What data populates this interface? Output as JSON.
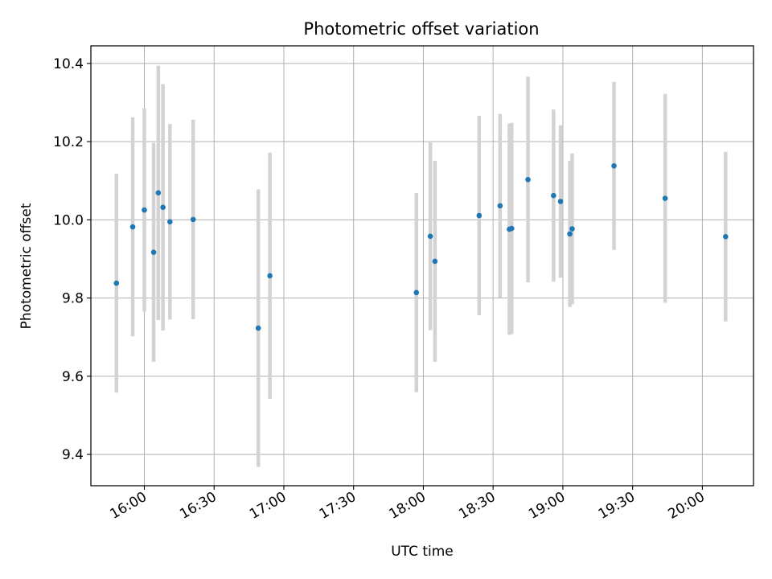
{
  "chart_data": {
    "type": "scatter",
    "title": "Photometric offset variation",
    "xlabel": "UTC time",
    "ylabel": "Photometric offset",
    "grid": true,
    "x_ticks": [
      "16:00",
      "16:30",
      "17:00",
      "17:30",
      "18:00",
      "18:30",
      "19:00",
      "19:30",
      "20:00"
    ],
    "y_ticks": [
      "9.4",
      "9.6",
      "9.8",
      "10.0",
      "10.2",
      "10.4"
    ],
    "xlim": [
      "15:37",
      "20:22"
    ],
    "ylim": [
      9.32,
      10.445
    ],
    "colors": {
      "points": "#1f77b4",
      "errorbars": "#d3d3d3",
      "grid": "#b0b0b0"
    },
    "points": [
      {
        "x": "15:48",
        "y": 9.838,
        "err": 0.28
      },
      {
        "x": "15:55",
        "y": 9.982,
        "err": 0.28
      },
      {
        "x": "16:00",
        "y": 10.025,
        "err": 0.26
      },
      {
        "x": "16:04",
        "y": 9.917,
        "err": 0.28
      },
      {
        "x": "16:06",
        "y": 10.069,
        "err": 0.325
      },
      {
        "x": "16:08",
        "y": 10.032,
        "err": 0.315
      },
      {
        "x": "16:11",
        "y": 9.995,
        "err": 0.25
      },
      {
        "x": "16:21",
        "y": 10.001,
        "err": 0.255
      },
      {
        "x": "16:49",
        "y": 9.723,
        "err": 0.355
      },
      {
        "x": "16:54",
        "y": 9.857,
        "err": 0.315
      },
      {
        "x": "17:57",
        "y": 9.814,
        "err": 0.255
      },
      {
        "x": "18:03",
        "y": 9.958,
        "err": 0.24
      },
      {
        "x": "18:05",
        "y": 9.894,
        "err": 0.257
      },
      {
        "x": "18:24",
        "y": 10.011,
        "err": 0.255
      },
      {
        "x": "18:33",
        "y": 10.036,
        "err": 0.235
      },
      {
        "x": "18:37",
        "y": 9.976,
        "err": 0.27
      },
      {
        "x": "18:38",
        "y": 9.978,
        "err": 0.27
      },
      {
        "x": "18:45",
        "y": 10.103,
        "err": 0.263
      },
      {
        "x": "18:56",
        "y": 10.062,
        "err": 0.22
      },
      {
        "x": "18:59",
        "y": 10.047,
        "err": 0.195
      },
      {
        "x": "19:03",
        "y": 9.964,
        "err": 0.187
      },
      {
        "x": "19:04",
        "y": 9.977,
        "err": 0.193
      },
      {
        "x": "19:22",
        "y": 10.138,
        "err": 0.215
      },
      {
        "x": "19:44",
        "y": 10.055,
        "err": 0.267
      },
      {
        "x": "20:10",
        "y": 9.957,
        "err": 0.217
      }
    ]
  }
}
